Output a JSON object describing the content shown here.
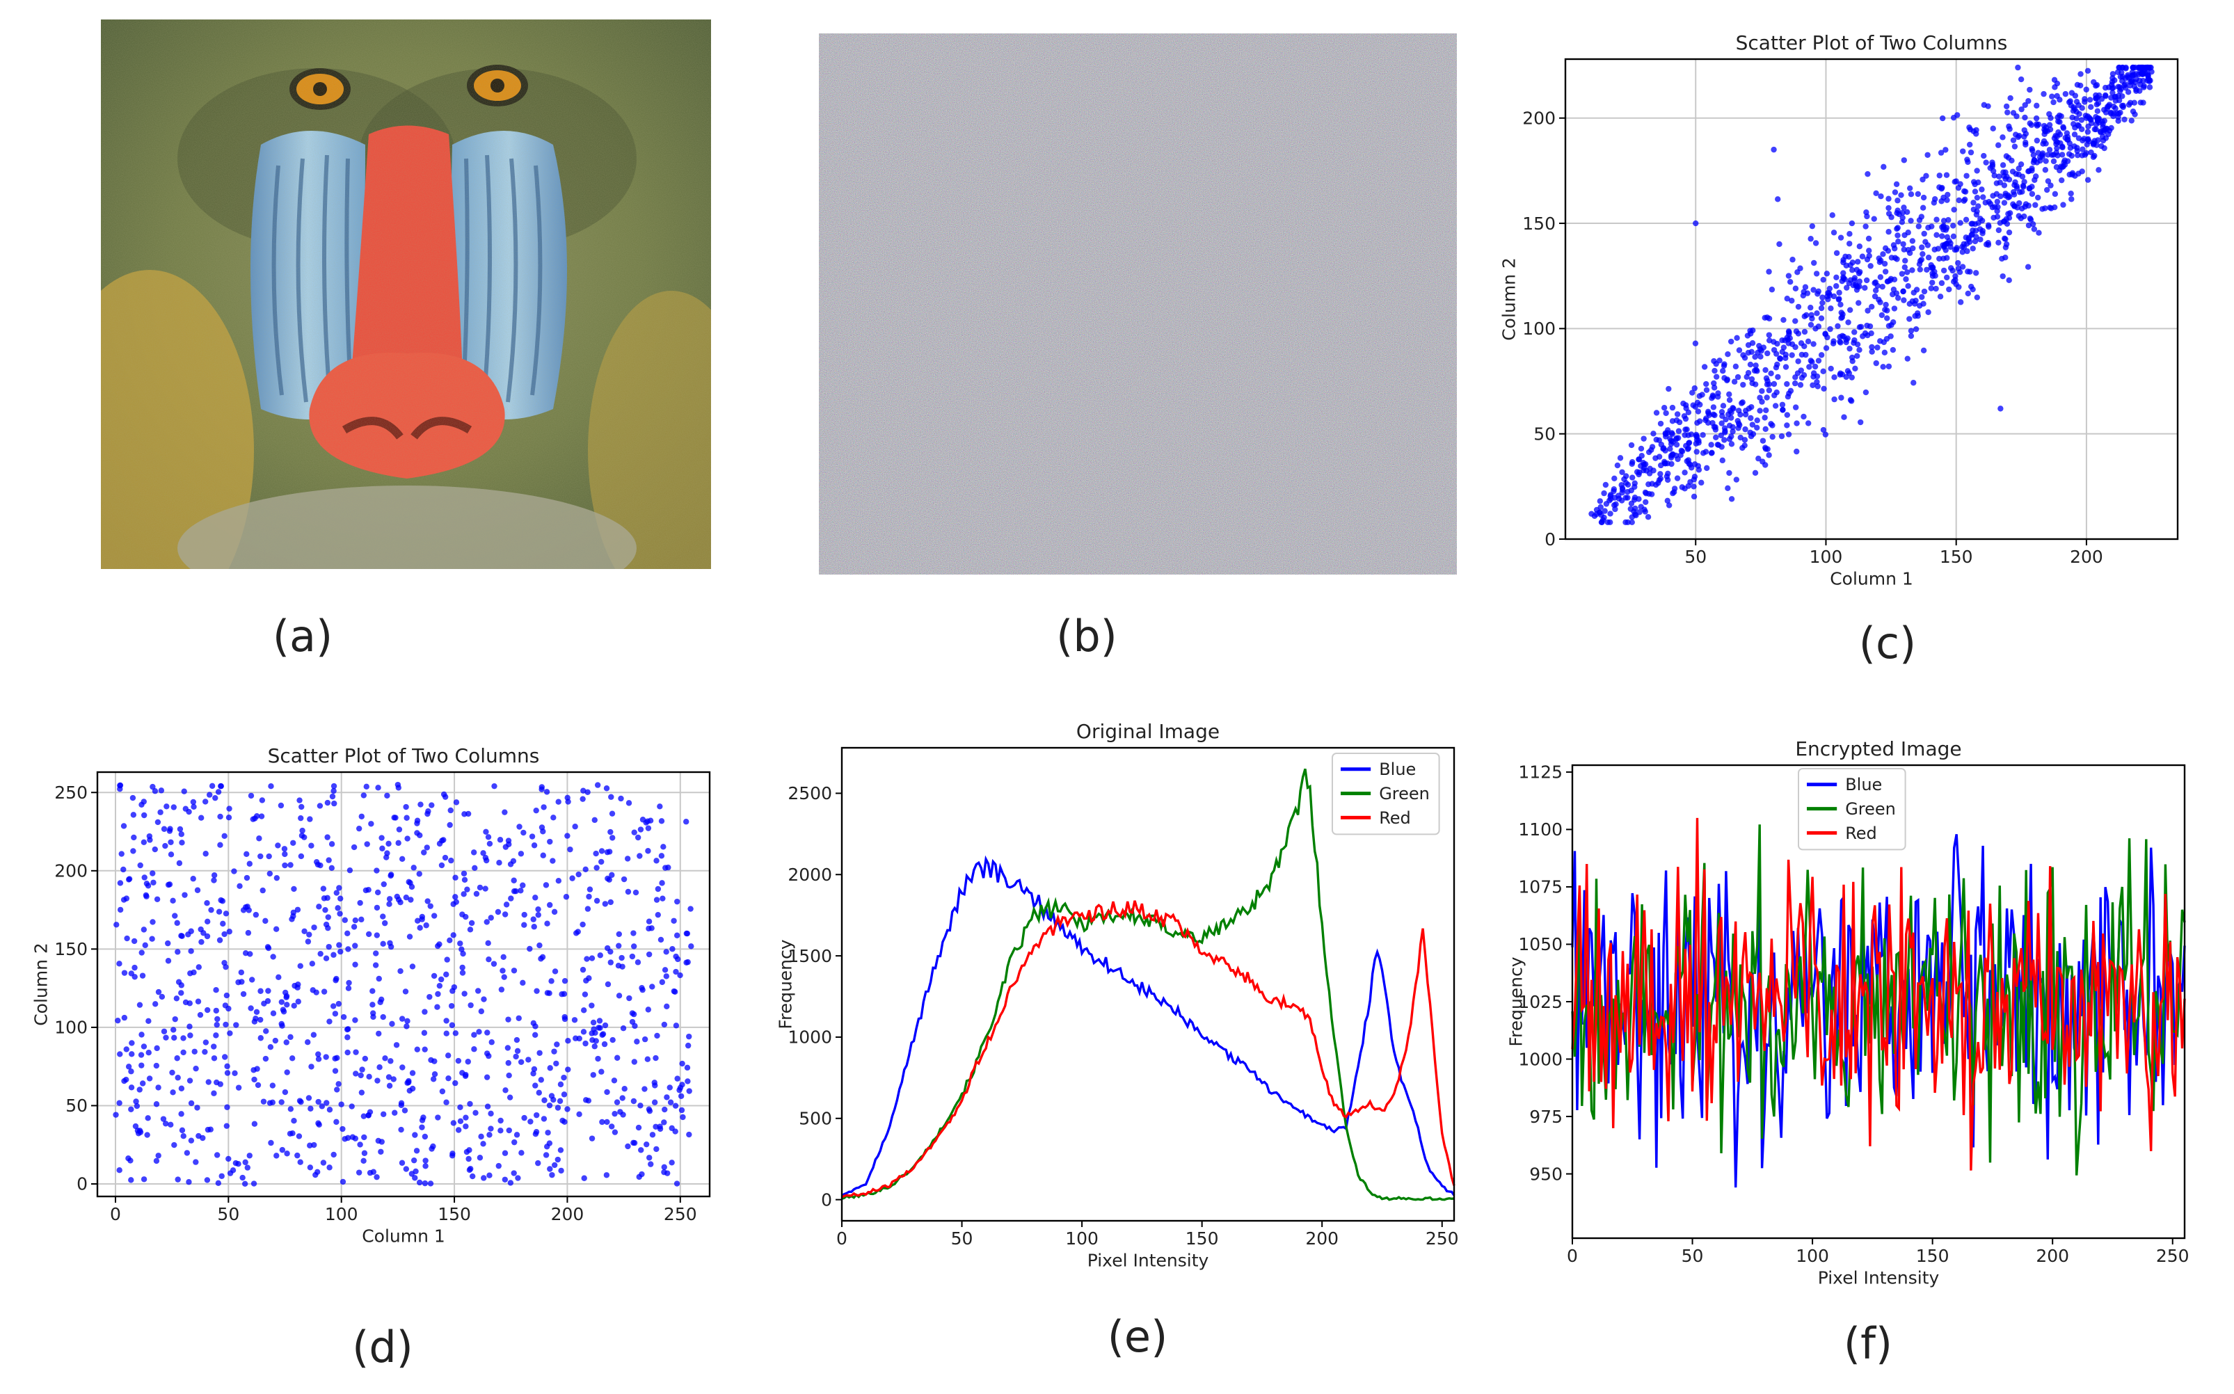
{
  "captions": {
    "a": "(a)",
    "b": "(b)",
    "c": "(c)",
    "d": "(d)",
    "e": "(e)",
    "f": "(f)"
  },
  "photo_a": {
    "description_icon": "mandrill-face-image"
  },
  "photo_b": {
    "description_icon": "encrypted-noise-image"
  },
  "chart_data": [
    {
      "id": "c",
      "type": "scatter",
      "title": "Scatter Plot of Two Columns",
      "xlabel": "Column 1",
      "ylabel": "Column 2",
      "xlim": [
        0,
        235
      ],
      "ylim": [
        0,
        228
      ],
      "xticks": [
        50,
        100,
        150,
        200
      ],
      "yticks": [
        0,
        50,
        100,
        150,
        200
      ],
      "grid": true,
      "color": "#0000ff",
      "distribution": "correlated",
      "n_points": 1400,
      "points_sample": [
        [
          10,
          12
        ],
        [
          20,
          35
        ],
        [
          35,
          60
        ],
        [
          50,
          150
        ],
        [
          60,
          55
        ],
        [
          80,
          185
        ],
        [
          96,
          100
        ],
        [
          110,
          150
        ],
        [
          130,
          180
        ],
        [
          150,
          170
        ],
        [
          167,
          62
        ],
        [
          180,
          180
        ],
        [
          200,
          200
        ],
        [
          210,
          212
        ],
        [
          225,
          222
        ]
      ]
    },
    {
      "id": "d",
      "type": "scatter",
      "title": "Scatter Plot of Two Columns",
      "xlabel": "Column 1",
      "ylabel": "Column 2",
      "xlim": [
        -8,
        263
      ],
      "ylim": [
        -8,
        263
      ],
      "xticks": [
        0,
        50,
        100,
        150,
        200,
        250
      ],
      "yticks": [
        0,
        50,
        100,
        150,
        200,
        250
      ],
      "grid": true,
      "color": "#0000ff",
      "distribution": "uniform",
      "n_points": 1100
    },
    {
      "id": "e",
      "type": "line",
      "title": "Original Image",
      "xlabel": "Pixel Intensity",
      "ylabel": "Frequency",
      "xlim": [
        0,
        255
      ],
      "ylim": [
        -130,
        2780
      ],
      "xticks": [
        0,
        50,
        100,
        150,
        200,
        250
      ],
      "yticks": [
        0,
        500,
        1000,
        1500,
        2000,
        2500
      ],
      "legend": "top-right",
      "x": [
        0,
        10,
        20,
        30,
        40,
        50,
        55,
        60,
        65,
        70,
        80,
        90,
        100,
        110,
        120,
        130,
        140,
        150,
        160,
        170,
        180,
        190,
        193,
        195,
        200,
        205,
        210,
        215,
        220,
        223,
        225,
        230,
        235,
        240,
        242,
        245,
        250,
        255
      ],
      "series": [
        {
          "name": "Blue",
          "color": "#0000ff",
          "values": [
            30,
            100,
            450,
            1000,
            1500,
            1900,
            2000,
            2050,
            2000,
            1950,
            1850,
            1700,
            1550,
            1450,
            1350,
            1250,
            1150,
            1000,
            900,
            800,
            650,
            560,
            520,
            500,
            460,
            420,
            450,
            800,
            1250,
            1550,
            1400,
            900,
            650,
            450,
            300,
            180,
            80,
            30
          ]
        },
        {
          "name": "Green",
          "color": "#008000",
          "values": [
            10,
            30,
            80,
            200,
            400,
            650,
            800,
            1000,
            1200,
            1450,
            1750,
            1800,
            1700,
            1750,
            1750,
            1700,
            1650,
            1600,
            1700,
            1800,
            2000,
            2400,
            2640,
            2500,
            1700,
            1000,
            450,
            150,
            50,
            20,
            10,
            5,
            5,
            5,
            5,
            5,
            5,
            5
          ]
        },
        {
          "name": "Red",
          "color": "#ff0000",
          "values": [
            20,
            40,
            90,
            200,
            380,
            600,
            800,
            950,
            1100,
            1300,
            1550,
            1700,
            1720,
            1780,
            1800,
            1750,
            1700,
            1550,
            1450,
            1350,
            1220,
            1200,
            1150,
            1100,
            800,
            580,
            520,
            550,
            600,
            560,
            540,
            650,
            900,
            1400,
            1650,
            1200,
            400,
            80
          ]
        }
      ]
    },
    {
      "id": "f",
      "type": "line",
      "title": "Encrypted Image",
      "xlabel": "Pixel Intensity",
      "ylabel": "Frequency",
      "xlim": [
        0,
        255
      ],
      "ylim": [
        922,
        1128
      ],
      "xticks": [
        0,
        50,
        100,
        150,
        200,
        250
      ],
      "yticks": [
        950,
        975,
        1000,
        1025,
        1050,
        1075,
        1100,
        1125
      ],
      "legend": "top-center",
      "value_range": [
        935,
        1105
      ],
      "series": [
        {
          "name": "Blue",
          "color": "#0000ff"
        },
        {
          "name": "Green",
          "color": "#008000"
        },
        {
          "name": "Red",
          "color": "#ff0000"
        }
      ]
    }
  ]
}
